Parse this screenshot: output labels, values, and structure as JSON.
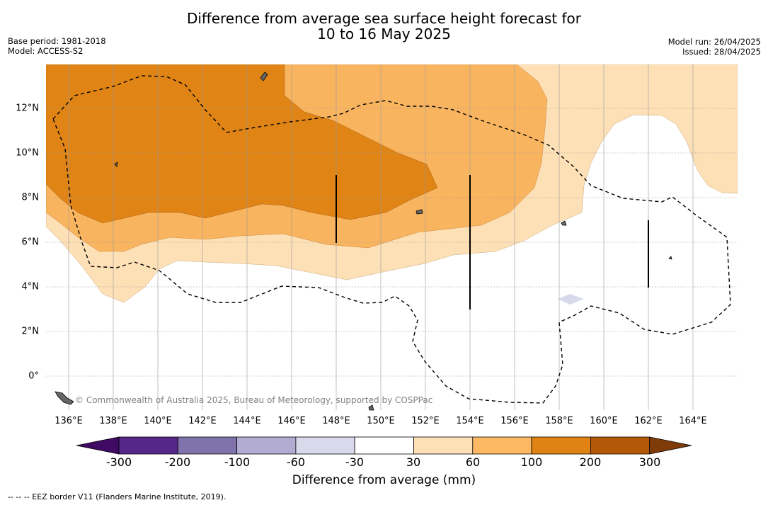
{
  "title_line1": "Difference from average sea surface height forecast for",
  "title_line2": "10 to 16 May 2025",
  "left_meta": [
    "Base period: 1981-2018",
    "Model: ACCESS-S2"
  ],
  "right_meta": [
    "Model run: 26/04/2025",
    "Issued: 28/04/2025"
  ],
  "copyright": "© Commonwealth of Australia 2025, Bureau of Meteorology, supported by COSPPac",
  "footnote": "--  --  -- EEZ border V11 (Flanders Marine Institute, 2019).",
  "map": {
    "lon_range": [
      135,
      166
    ],
    "lat_range": [
      -1.5,
      14
    ],
    "x_ticks": [
      "136°E",
      "138°E",
      "140°E",
      "142°E",
      "144°E",
      "146°E",
      "148°E",
      "150°E",
      "152°E",
      "154°E",
      "156°E",
      "158°E",
      "160°E",
      "162°E",
      "164°E"
    ],
    "y_ticks": [
      "12°N",
      "10°N",
      "8°N",
      "6°N",
      "4°N",
      "2°N",
      "0°"
    ],
    "anomaly_bands_mm": [
      {
        "range": "30 to 60",
        "color": "#fee0b6"
      },
      {
        "range": "60 to 100",
        "color": "#f9b45f"
      },
      {
        "range": "100 to 200",
        "color": "#e08416"
      },
      {
        "range": "-60 to -30",
        "color": "#d8daeb"
      }
    ]
  },
  "colorbar": {
    "label": "Difference from average (mm)",
    "ticks": [
      "-300",
      "-200",
      "-100",
      "-60",
      "-30",
      "30",
      "60",
      "100",
      "200",
      "300"
    ],
    "colors": [
      "#3f0a63",
      "#542788",
      "#8073ac",
      "#b2abd2",
      "#d8daeb",
      "#ffffff",
      "#fee0b6",
      "#fdb863",
      "#e08214",
      "#b35806",
      "#7f3b08"
    ]
  }
}
